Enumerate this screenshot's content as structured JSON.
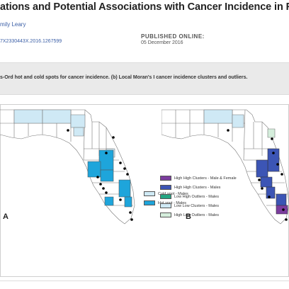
{
  "article": {
    "title": "ations and Potential Associations with Cancer Incidence in Florida",
    "author": "mily Leary",
    "doi": "7X2330443X.2016.1267599",
    "published_label": "PUBLISHED ONLINE:",
    "published_date": "05 December 2016"
  },
  "figure": {
    "caption": "s-Ord hot and cold spots for cancer incidence. (b) Local Moran's I cancer incidence clusters and outliers.",
    "panel_a": {
      "label": "A",
      "legend": [
        {
          "label": "Cold spot - Males",
          "color": "#cfe9f5"
        },
        {
          "label": "Hot spot - Males",
          "color": "#1ea5db"
        }
      ]
    },
    "panel_b": {
      "label": "B",
      "legend": [
        {
          "label": "High High Clusters - Male & Female",
          "color": "#7b3d9e"
        },
        {
          "label": "High High Clusters - Males",
          "color": "#3c55b5"
        },
        {
          "label": "Low High Outliers - Males",
          "color": "#24a582"
        },
        {
          "label": "Low Low Clusters - Males",
          "color": "#cfe9f5"
        },
        {
          "label": "High Low Outliers - Males",
          "color": "#d5eedc"
        }
      ]
    }
  },
  "colors": {
    "map_fill": "#ffffff",
    "county_border": "#777777",
    "site_dot": "#000000",
    "caption_bg": "#eaeaea"
  }
}
